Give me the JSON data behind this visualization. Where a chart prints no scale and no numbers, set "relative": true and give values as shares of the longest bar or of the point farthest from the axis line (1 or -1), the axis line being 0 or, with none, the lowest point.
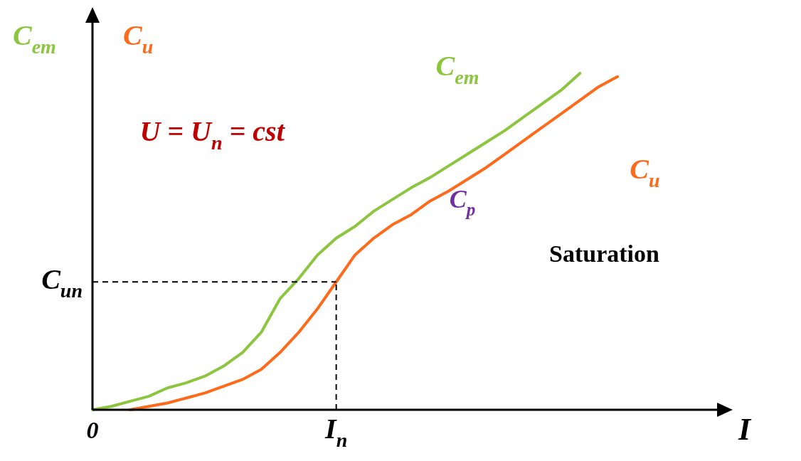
{
  "chart_data": {
    "type": "line",
    "relative": true,
    "marker": "none",
    "xlabel": "I",
    "categories": [
      "0",
      null,
      null,
      null,
      null,
      null,
      null,
      null,
      null,
      null,
      null,
      null,
      null,
      "I$_{n}$",
      null,
      null,
      null,
      null,
      null,
      null,
      null,
      null,
      null,
      null,
      null,
      null,
      null,
      null,
      null
    ],
    "series": [
      {
        "name": "C$_{em}$",
        "color": "#8cc63f",
        "values": [
          0,
          0.01,
          0.025,
          0.04,
          0.065,
          0.08,
          0.1,
          0.13,
          0.17,
          0.23,
          0.33,
          0.39,
          0.46,
          0.51,
          0.545,
          0.59,
          0.625,
          0.66,
          0.69,
          0.725,
          0.76,
          0.795,
          0.83,
          0.87,
          0.91,
          0.95,
          1,
          null,
          null
        ]
      },
      {
        "name": "C$_{u}$",
        "color": "#ff6a1a",
        "values": [
          null,
          null,
          0,
          0.01,
          0.02,
          0.035,
          0.05,
          0.07,
          0.09,
          0.12,
          0.17,
          0.23,
          0.3,
          0.38,
          0.46,
          0.51,
          0.55,
          0.58,
          0.62,
          0.65,
          0.685,
          0.72,
          0.76,
          0.8,
          0.84,
          0.88,
          0.92,
          0.96,
          0.99
        ]
      }
    ],
    "ref_lines": [
      {
        "axis": "y",
        "value": 0.38,
        "label": "C$_{un}$",
        "line_style": "dashed"
      },
      {
        "axis": "x",
        "value": "I$_{n}$",
        "line_style": "dashed"
      }
    ],
    "annotations": [
      "U = U$_{n}$ = cst",
      "C$_{p}$",
      "Saturation"
    ]
  }
}
